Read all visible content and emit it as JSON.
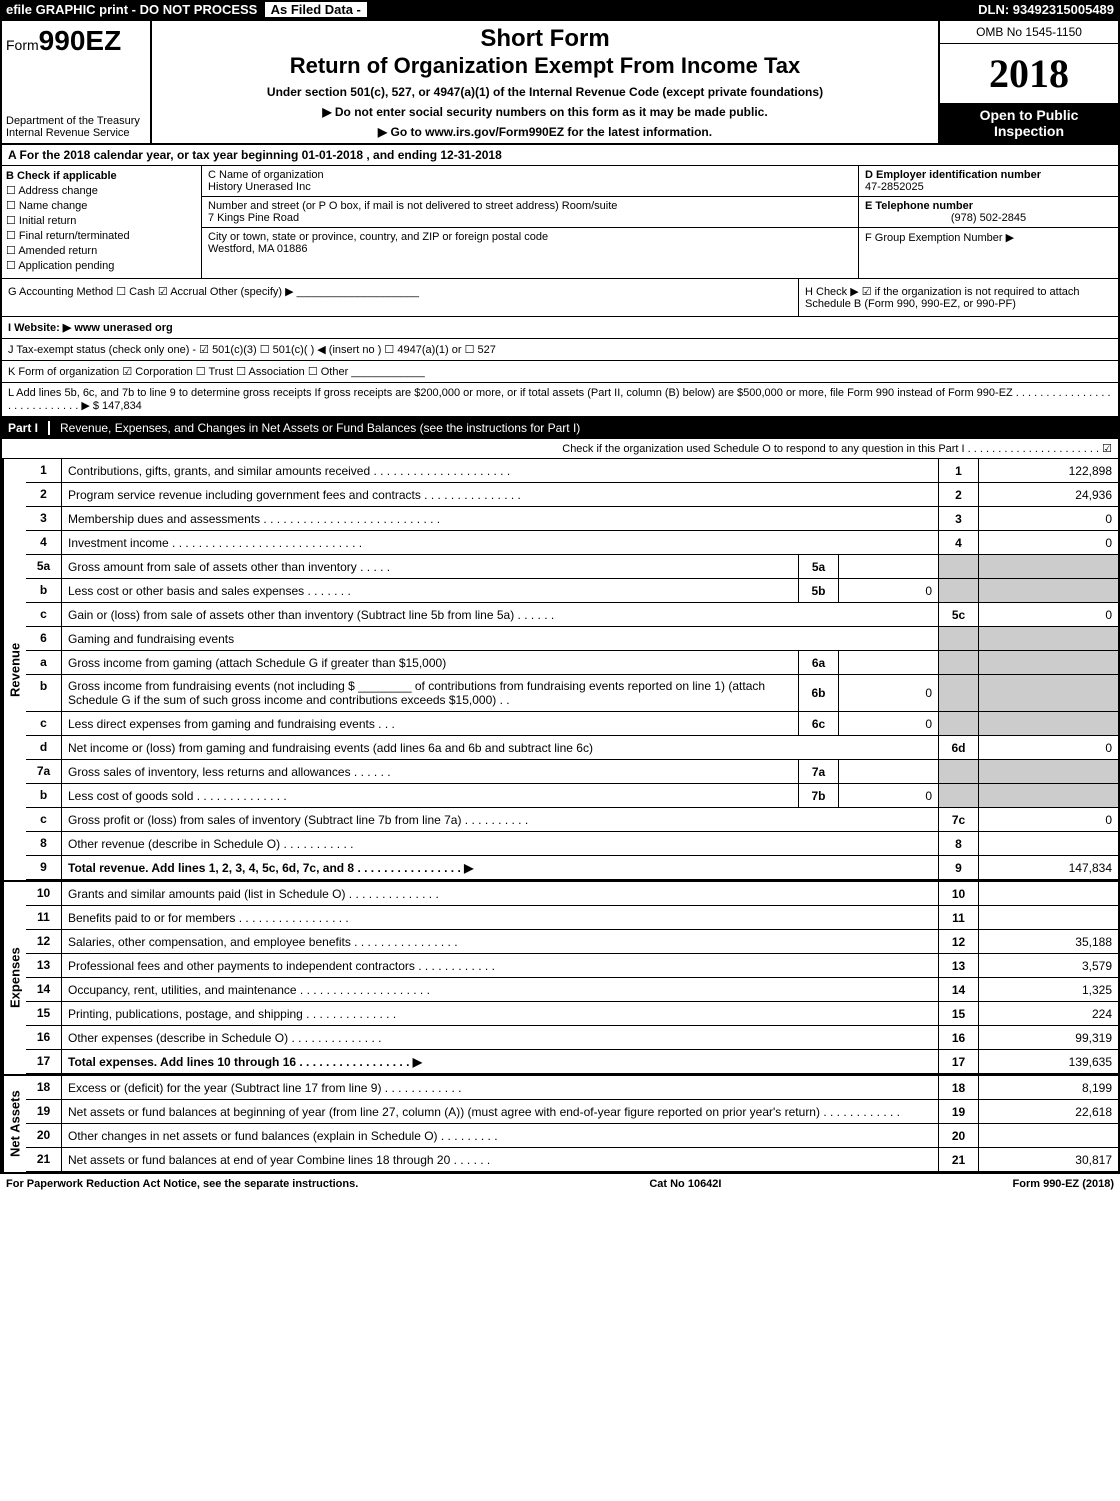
{
  "topbar": {
    "left": "efile GRAPHIC print - DO NOT PROCESS",
    "mid": "As Filed Data -",
    "right": "DLN: 93492315005489"
  },
  "header": {
    "form_prefix": "Form",
    "form_number": "990EZ",
    "dept": "Department of the Treasury",
    "irs": "Internal Revenue Service",
    "short_form": "Short Form",
    "title": "Return of Organization Exempt From Income Tax",
    "under": "Under section 501(c), 527, or 4947(a)(1) of the Internal Revenue Code (except private foundations)",
    "ssn_note": "▶ Do not enter social security numbers on this form as it may be made public.",
    "goto": "▶ Go to www.irs.gov/Form990EZ for the latest information.",
    "omb": "OMB No 1545-1150",
    "year": "2018",
    "open": "Open to Public Inspection"
  },
  "row_a": "A  For the 2018 calendar year, or tax year beginning 01-01-2018                  , and ending 12-31-2018",
  "col_b": {
    "header": "B  Check if applicable",
    "items": [
      "Address change",
      "Name change",
      "Initial return",
      "Final return/terminated",
      "Amended return",
      "Application pending"
    ]
  },
  "col_c": {
    "name_label": "C Name of organization",
    "name": "History Unerased Inc",
    "addr_label": "Number and street (or P O box, if mail is not delivered to street address)  Room/suite",
    "addr": "7 Kings Pine Road",
    "city_label": "City or town, state or province, country, and ZIP or foreign postal code",
    "city": "Westford, MA  01886"
  },
  "col_def": {
    "d_label": "D Employer identification number",
    "d_val": "47-2852025",
    "e_label": "E Telephone number",
    "e_val": "(978) 502-2845",
    "f_label": "F Group Exemption Number   ▶"
  },
  "g": {
    "label": "G Accounting Method    ☐ Cash   ☑ Accrual   Other (specify) ▶ ____________________",
    "h": "H   Check ▶  ☑  if the organization is not required to attach Schedule B (Form 990, 990-EZ, or 990-PF)"
  },
  "i": "I Website: ▶ www unerased org",
  "j": "J Tax-exempt status (check only one) - ☑ 501(c)(3)  ☐ 501(c)( ) ◀ (insert no ) ☐ 4947(a)(1) or ☐ 527",
  "k": "K Form of organization    ☑ Corporation  ☐ Trust  ☐ Association  ☐ Other ____________",
  "l": "L Add lines 5b, 6c, and 7b to line 9 to determine gross receipts  If gross receipts are $200,000 or more, or if total assets (Part II, column (B) below) are $500,000 or more, file Form 990 instead of Form 990-EZ  . . . . . . . . . . . . . . . . . . . . . . . . . . . .  ▶ $ 147,834",
  "part1": {
    "label": "Part I",
    "title": "Revenue, Expenses, and Changes in Net Assets or Fund Balances (see the instructions for Part I)",
    "note": "Check if the organization used Schedule O to respond to any question in this Part I  . . . . . . . . . . . . . . . . . . . . . .  ☑"
  },
  "sections": {
    "revenue": "Revenue",
    "expenses": "Expenses",
    "net": "Net Assets"
  },
  "rev_lines": [
    {
      "n": "1",
      "d": "Contributions, gifts, grants, and similar amounts received  . . . . . . . . . . . . . . . . . . . . .",
      "rn": "1",
      "rv": "122,898"
    },
    {
      "n": "2",
      "d": "Program service revenue including government fees and contracts  . . . . . . . . . . . . . . .",
      "rn": "2",
      "rv": "24,936"
    },
    {
      "n": "3",
      "d": "Membership dues and assessments  . . . . . . . . . . . . . . . . . . . . . . . . . . .",
      "rn": "3",
      "rv": "0"
    },
    {
      "n": "4",
      "d": "Investment income  . . . . . . . . . . . . . . . . . . . . . . . . . . . . .",
      "rn": "4",
      "rv": "0"
    },
    {
      "n": "5a",
      "d": "Gross amount from sale of assets other than inventory  . . . . .",
      "mn": "5a",
      "mv": "",
      "gray": true
    },
    {
      "n": "b",
      "d": "Less  cost or other basis and sales expenses  . . . . . . .",
      "mn": "5b",
      "mv": "0",
      "gray": true
    },
    {
      "n": "c",
      "d": "Gain or (loss) from sale of assets other than inventory (Subtract line 5b from line 5a)  . . . . . .",
      "rn": "5c",
      "rv": "0"
    },
    {
      "n": "6",
      "d": "Gaming and fundraising events",
      "gray": true
    },
    {
      "n": "a",
      "d": "Gross income from gaming (attach Schedule G if greater than $15,000)",
      "mn": "6a",
      "mv": "",
      "gray": true
    },
    {
      "n": "b",
      "d": "Gross income from fundraising events (not including $ ________ of contributions from fundraising events reported on line 1) (attach Schedule G if the sum of such gross income and contributions exceeds $15,000)    . .",
      "mn": "6b",
      "mv": "0",
      "gray": true
    },
    {
      "n": "c",
      "d": "Less  direct expenses from gaming and fundraising events     . . .",
      "mn": "6c",
      "mv": "0",
      "gray": true
    },
    {
      "n": "d",
      "d": "Net income or (loss) from gaming and fundraising events (add lines 6a and 6b and subtract line 6c)",
      "rn": "6d",
      "rv": "0"
    },
    {
      "n": "7a",
      "d": "Gross sales of inventory, less returns and allowances  . . . . . .",
      "mn": "7a",
      "mv": "",
      "gray": true
    },
    {
      "n": "b",
      "d": "Less  cost of goods sold           . . . . . . . . . . . . . .",
      "mn": "7b",
      "mv": "0",
      "gray": true
    },
    {
      "n": "c",
      "d": "Gross profit or (loss) from sales of inventory (Subtract line 7b from line 7a)  . . . . . . . . . .",
      "rn": "7c",
      "rv": "0"
    },
    {
      "n": "8",
      "d": "Other revenue (describe in Schedule O)                           . . . . . . . . . . .",
      "rn": "8",
      "rv": ""
    },
    {
      "n": "9",
      "d": "Total revenue. Add lines 1, 2, 3, 4, 5c, 6d, 7c, and 8  . . . . . . . . . . . . . . . .  ▶",
      "rn": "9",
      "rv": "147,834",
      "bold": true
    }
  ],
  "exp_lines": [
    {
      "n": "10",
      "d": "Grants and similar amounts paid (list in Schedule O)          . . . . . . . . . . . . . .",
      "rn": "10",
      "rv": ""
    },
    {
      "n": "11",
      "d": "Benefits paid to or for members                    . . . . . . . . . . . . . . . . .",
      "rn": "11",
      "rv": ""
    },
    {
      "n": "12",
      "d": "Salaries, other compensation, and employee benefits  . . . . . . . . . . . . . . . .",
      "rn": "12",
      "rv": "35,188"
    },
    {
      "n": "13",
      "d": "Professional fees and other payments to independent contractors  . . . . . . . . . . . .",
      "rn": "13",
      "rv": "3,579"
    },
    {
      "n": "14",
      "d": "Occupancy, rent, utilities, and maintenance  . . . . . . . . . . . . . . . . . . . .",
      "rn": "14",
      "rv": "1,325"
    },
    {
      "n": "15",
      "d": "Printing, publications, postage, and shipping              . . . . . . . . . . . . . .",
      "rn": "15",
      "rv": "224"
    },
    {
      "n": "16",
      "d": "Other expenses (describe in Schedule O)                . . . . . . . . . . . . . .",
      "rn": "16",
      "rv": "99,319"
    },
    {
      "n": "17",
      "d": "Total expenses. Add lines 10 through 16        . . . . . . . . . . . . . . . . .  ▶",
      "rn": "17",
      "rv": "139,635",
      "bold": true
    }
  ],
  "net_lines": [
    {
      "n": "18",
      "d": "Excess or (deficit) for the year (Subtract line 17 from line 9)      . . . . . . . . . . . .",
      "rn": "18",
      "rv": "8,199"
    },
    {
      "n": "19",
      "d": "Net assets or fund balances at beginning of year (from line 27, column (A)) (must agree with end-of-year figure reported on prior year's return)               . . . . . . . . . . . .",
      "rn": "19",
      "rv": "22,618"
    },
    {
      "n": "20",
      "d": "Other changes in net assets or fund balances (explain in Schedule O)     . . . . . . . . .",
      "rn": "20",
      "rv": ""
    },
    {
      "n": "21",
      "d": "Net assets or fund balances at end of year  Combine lines 18 through 20          . . . . . .",
      "rn": "21",
      "rv": "30,817"
    }
  ],
  "footer": {
    "left": "For Paperwork Reduction Act Notice, see the separate instructions.",
    "mid": "Cat No  10642I",
    "right": "Form 990-EZ (2018)"
  }
}
